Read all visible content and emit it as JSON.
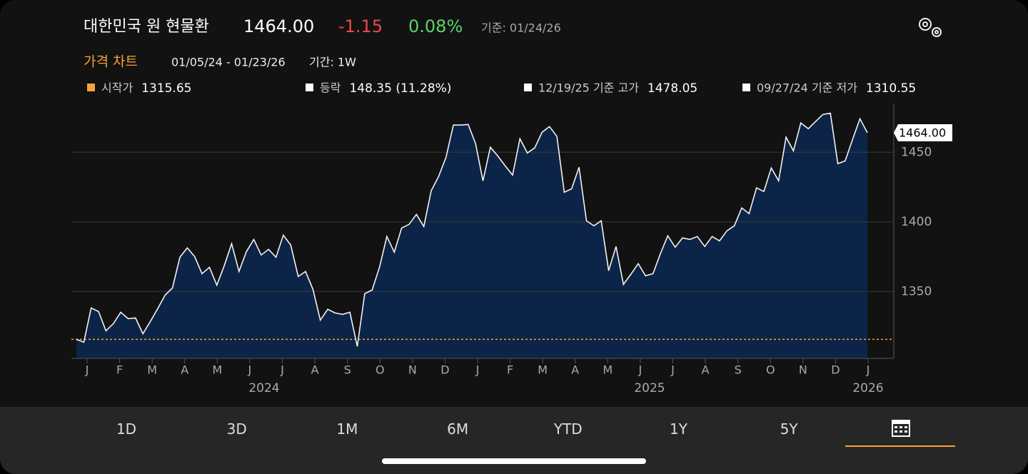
{
  "header": {
    "title": "대한민국 원 현물환",
    "price": "1464.00",
    "change": "-1.15",
    "percent": "0.08%",
    "basis": "기준: 01/24/26",
    "section": "가격 차트",
    "range": "01/05/24 - 01/23/26",
    "period": "기간: 1W",
    "stats": [
      {
        "label": "시작가",
        "value": "1315.65"
      },
      {
        "label": "등락",
        "value": "148.35 (11.28%)"
      },
      {
        "label": "12/19/25 기준 고가",
        "value": "1478.05"
      },
      {
        "label": "09/27/24 기준 저가",
        "value": "1310.55"
      }
    ]
  },
  "chart_data": {
    "type": "area",
    "color": "#f2f2f2",
    "fill": "#0c2447",
    "baseline": 1315.65,
    "baseline_color": "#f7a33b",
    "ylim": [
      1302,
      1485
    ],
    "yticks": [
      1350,
      1400,
      1450
    ],
    "grid": true,
    "x_labels": [
      "J",
      "F",
      "M",
      "A",
      "M",
      "J",
      "J",
      "A",
      "S",
      "O",
      "N",
      "D",
      "J",
      "F",
      "M",
      "A",
      "M",
      "J",
      "J",
      "A",
      "S",
      "O",
      "N",
      "D",
      "J"
    ],
    "years": [
      "2024",
      "2025",
      "2026"
    ],
    "values": [
      1315.65,
      1313.6,
      1338.2,
      1335.6,
      1321.8,
      1326.9,
      1335.1,
      1330.5,
      1331.0,
      1319.7,
      1328.5,
      1337.7,
      1347.4,
      1352.6,
      1374.6,
      1381.3,
      1375.1,
      1362.8,
      1367.4,
      1354.6,
      1368.5,
      1384.4,
      1364.4,
      1378.7,
      1387.4,
      1376.2,
      1380.3,
      1374.6,
      1390.5,
      1383.3,
      1360.8,
      1364.4,
      1351.5,
      1329.5,
      1337.2,
      1334.6,
      1333.6,
      1335.1,
      1310.55,
      1348.5,
      1351.0,
      1367.4,
      1389.5,
      1378.2,
      1395.6,
      1398.2,
      1405.4,
      1396.7,
      1422.3,
      1432.6,
      1446.4,
      1469.5,
      1469.5,
      1470.0,
      1456.2,
      1429.5,
      1453.6,
      1447.4,
      1440.3,
      1433.6,
      1459.7,
      1449.5,
      1453.1,
      1464.4,
      1468.5,
      1461.3,
      1421.3,
      1423.8,
      1439.2,
      1400.8,
      1397.2,
      1400.8,
      1364.9,
      1382.3,
      1355.1,
      1362.3,
      1370.0,
      1361.3,
      1362.8,
      1377.2,
      1390.0,
      1381.8,
      1388.5,
      1387.4,
      1389.5,
      1382.3,
      1389.5,
      1386.4,
      1393.6,
      1397.2,
      1410.0,
      1405.9,
      1424.4,
      1421.8,
      1438.7,
      1429.5,
      1460.8,
      1451.0,
      1471.0,
      1466.9,
      1472.1,
      1477.2,
      1478.05,
      1441.8,
      1443.8,
      1459.2,
      1474.1,
      1464.0
    ]
  },
  "tabs": [
    "1D",
    "3D",
    "1M",
    "6M",
    "YTD",
    "1Y",
    "5Y"
  ]
}
